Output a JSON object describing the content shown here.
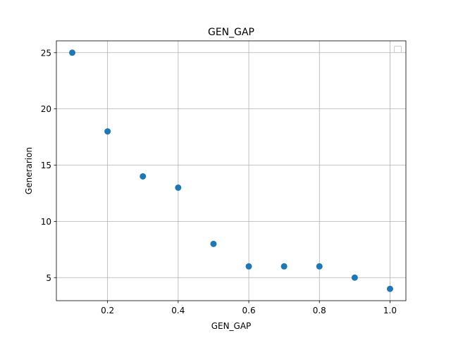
{
  "chart_data": {
    "type": "scatter",
    "title": "GEN_GAP",
    "xlabel": "GEN_GAP",
    "ylabel": "Generarion",
    "x": [
      0.1,
      0.2,
      0.3,
      0.4,
      0.5,
      0.6,
      0.7,
      0.8,
      0.9,
      1.0
    ],
    "y": [
      25,
      18,
      14,
      13,
      8,
      6,
      6,
      6,
      5,
      4
    ],
    "xlim": [
      0.055,
      1.045
    ],
    "ylim": [
      2.95,
      26.05
    ],
    "xticks": [
      0.2,
      0.4,
      0.6,
      0.8,
      1.0
    ],
    "xtick_labels": [
      "0.2",
      "0.4",
      "0.6",
      "0.8",
      "1.0"
    ],
    "yticks": [
      5,
      10,
      15,
      20,
      25
    ],
    "ytick_labels": [
      "5",
      "10",
      "15",
      "20",
      "25"
    ],
    "grid": true,
    "legend": "empty box, top-right",
    "marker_color": "#1f77b4"
  }
}
